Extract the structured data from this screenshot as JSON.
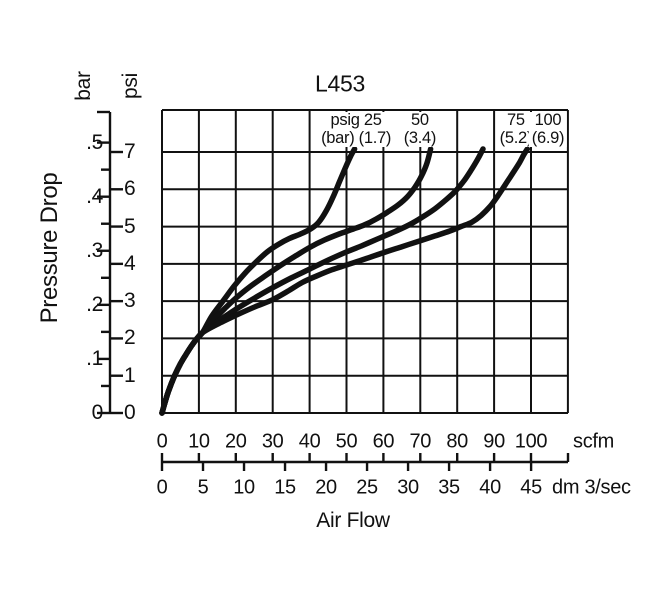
{
  "title": "L453",
  "y_axis": {
    "label": "Pressure Drop",
    "unit_left": "bar",
    "unit_right": "psi",
    "bar_major_ticks": [
      {
        "v": 0.5,
        "t": ".5"
      },
      {
        "v": 0.4,
        "t": ".4"
      },
      {
        "v": 0.3,
        "t": ".3"
      },
      {
        "v": 0.2,
        "t": ".2"
      },
      {
        "v": 0.1,
        "t": ".1"
      },
      {
        "v": 0,
        "t": "0"
      }
    ],
    "bar_minor_ticks": [
      0.05,
      0.15,
      0.25,
      0.35,
      0.45
    ],
    "psi_ticks": [
      {
        "v": 7,
        "t": "7"
      },
      {
        "v": 6,
        "t": "6"
      },
      {
        "v": 5,
        "t": "5"
      },
      {
        "v": 4,
        "t": "4"
      },
      {
        "v": 3,
        "t": "3"
      },
      {
        "v": 2,
        "t": "2"
      },
      {
        "v": 1,
        "t": "1"
      },
      {
        "v": 0,
        "t": "0"
      }
    ]
  },
  "x_axis": {
    "label": "Air Flow",
    "scfm_unit": "scfm",
    "dm_unit": "dm 3/sec",
    "scfm_ticks": [
      {
        "v": 0,
        "t": "0"
      },
      {
        "v": 10,
        "t": "10"
      },
      {
        "v": 20,
        "t": "20"
      },
      {
        "v": 30,
        "t": "30"
      },
      {
        "v": 40,
        "t": "40"
      },
      {
        "v": 50,
        "t": "50"
      },
      {
        "v": 60,
        "t": "60"
      },
      {
        "v": 70,
        "t": "70"
      },
      {
        "v": 80,
        "t": "80"
      },
      {
        "v": 90,
        "t": "90"
      },
      {
        "v": 100,
        "t": "100"
      }
    ],
    "dm_ticks": [
      {
        "v": 0,
        "t": "0"
      },
      {
        "v": 5,
        "t": "5"
      },
      {
        "v": 10,
        "t": "10"
      },
      {
        "v": 15,
        "t": "15"
      },
      {
        "v": 20,
        "t": "20"
      },
      {
        "v": 25,
        "t": "25"
      },
      {
        "v": 30,
        "t": "30"
      },
      {
        "v": 35,
        "t": "35"
      },
      {
        "v": 40,
        "t": "40"
      },
      {
        "v": 45,
        "t": "45"
      }
    ]
  },
  "chart_data": {
    "type": "line",
    "title": "L453",
    "xlabel": "Air Flow",
    "ylabel": "Pressure Drop",
    "x_units": [
      "scfm",
      "dm 3/sec"
    ],
    "y_units": [
      "bar",
      "psi"
    ],
    "x_range_scfm": [
      0,
      110
    ],
    "y_range_psi": [
      0,
      8.13
    ],
    "grid": true,
    "line_color": "#111111",
    "annotations": [
      {
        "line1": "psig 25",
        "line2": "(bar) (1.7)",
        "x_scfm": 52.6
      },
      {
        "line1": "50",
        "line2": "(3.4)",
        "x_scfm": 69.9
      },
      {
        "line1": "75",
        "line2": "(5.2)",
        "x_scfm": 95.9
      },
      {
        "line1": "100",
        "line2": "(6.9)",
        "x_scfm": 104.6
      }
    ],
    "common_trunk": [
      [
        0,
        0
      ],
      [
        1,
        0.35
      ],
      [
        2,
        0.65
      ],
      [
        3.5,
        1.02
      ],
      [
        5,
        1.32
      ],
      [
        6.5,
        1.57
      ],
      [
        8,
        1.8
      ],
      [
        9.5,
        2.0
      ],
      [
        11,
        2.16
      ]
    ],
    "series": [
      {
        "name": "25 psig (1.7 bar)",
        "psig": 25,
        "bar": 1.7,
        "points": [
          [
            13.5,
            2.6
          ],
          [
            16.5,
            3.0
          ],
          [
            19.5,
            3.4
          ],
          [
            22.5,
            3.75
          ],
          [
            25.5,
            4.05
          ],
          [
            28.5,
            4.32
          ],
          [
            31.5,
            4.52
          ],
          [
            34.5,
            4.68
          ],
          [
            37.5,
            4.8
          ],
          [
            40.5,
            4.95
          ],
          [
            42.5,
            5.12
          ],
          [
            44.5,
            5.42
          ],
          [
            46.3,
            5.78
          ],
          [
            48,
            6.18
          ],
          [
            49.8,
            6.6
          ],
          [
            51.2,
            6.9
          ],
          [
            52.2,
            7.08
          ]
        ]
      },
      {
        "name": "50 psig (3.4 bar)",
        "psig": 50,
        "bar": 3.4,
        "points": [
          [
            14,
            2.5
          ],
          [
            17,
            2.8
          ],
          [
            20,
            3.08
          ],
          [
            24,
            3.4
          ],
          [
            28,
            3.68
          ],
          [
            32,
            3.95
          ],
          [
            36,
            4.2
          ],
          [
            40,
            4.44
          ],
          [
            44,
            4.64
          ],
          [
            48,
            4.8
          ],
          [
            52,
            4.94
          ],
          [
            55,
            5.05
          ],
          [
            58,
            5.2
          ],
          [
            61,
            5.38
          ],
          [
            64,
            5.58
          ],
          [
            66.5,
            5.8
          ],
          [
            68.5,
            6.05
          ],
          [
            70.3,
            6.35
          ],
          [
            71.8,
            6.7
          ],
          [
            72.8,
            7.08
          ]
        ]
      },
      {
        "name": "75 psig (5.2 bar)",
        "psig": 75,
        "bar": 5.2,
        "points": [
          [
            15,
            2.45
          ],
          [
            20,
            2.78
          ],
          [
            25,
            3.08
          ],
          [
            30,
            3.36
          ],
          [
            35,
            3.62
          ],
          [
            40,
            3.86
          ],
          [
            45,
            4.1
          ],
          [
            50,
            4.32
          ],
          [
            54,
            4.48
          ],
          [
            58,
            4.65
          ],
          [
            62,
            4.82
          ],
          [
            65,
            4.95
          ],
          [
            68,
            5.1
          ],
          [
            71,
            5.28
          ],
          [
            74,
            5.48
          ],
          [
            77,
            5.72
          ],
          [
            79.5,
            5.95
          ],
          [
            82,
            6.25
          ],
          [
            84,
            6.55
          ],
          [
            85.8,
            6.85
          ],
          [
            87,
            7.08
          ]
        ]
      },
      {
        "name": "100 psig (6.9 bar)",
        "psig": 100,
        "bar": 6.9,
        "points": [
          [
            15,
            2.38
          ],
          [
            20,
            2.62
          ],
          [
            25,
            2.84
          ],
          [
            30,
            3.04
          ],
          [
            34,
            3.26
          ],
          [
            38,
            3.5
          ],
          [
            42,
            3.68
          ],
          [
            46,
            3.84
          ],
          [
            50,
            3.97
          ],
          [
            55,
            4.13
          ],
          [
            60,
            4.3
          ],
          [
            65,
            4.46
          ],
          [
            70,
            4.62
          ],
          [
            74,
            4.75
          ],
          [
            78,
            4.88
          ],
          [
            81,
            5.0
          ],
          [
            84,
            5.12
          ],
          [
            86.5,
            5.3
          ],
          [
            89,
            5.55
          ],
          [
            91,
            5.82
          ],
          [
            93,
            6.12
          ],
          [
            95,
            6.42
          ],
          [
            96.8,
            6.7
          ],
          [
            98,
            6.92
          ],
          [
            99,
            7.08
          ]
        ]
      }
    ]
  }
}
